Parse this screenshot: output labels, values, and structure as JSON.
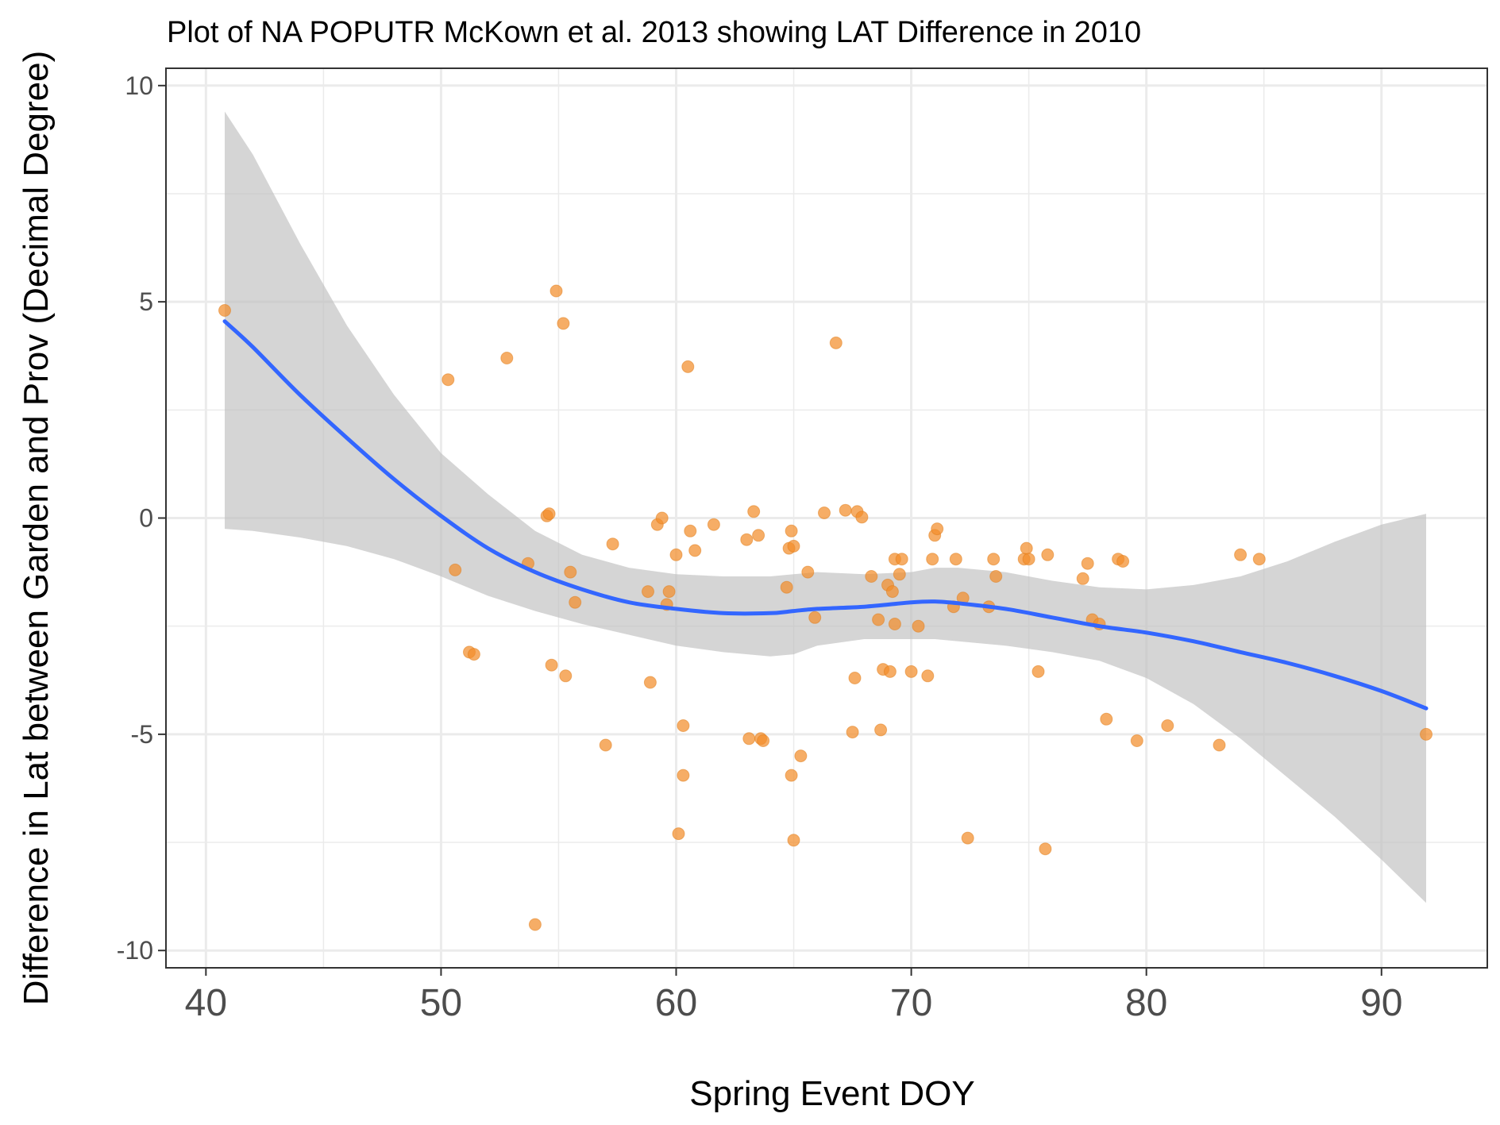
{
  "chart_data": {
    "type": "scatter",
    "title": "Plot of NA POPUTR McKown et al. 2013 showing LAT Difference in 2010",
    "xlabel": "Spring Event DOY",
    "ylabel": "Difference in Lat between Garden and Prov (Decimal Degree)",
    "xlim": [
      38.3,
      94.5
    ],
    "ylim": [
      -10.4,
      10.4
    ],
    "xticks": [
      "40",
      "50",
      "60",
      "70",
      "80",
      "90"
    ],
    "yticks": [
      "10",
      "5",
      "0",
      "-5",
      "-10"
    ],
    "grid": true,
    "legend": "none",
    "colors": {
      "points": "#f28e2b",
      "smooth": "#3366ff",
      "ribbon": "#bfbfbf",
      "grid": "#ebebeb",
      "panel_border": "#333333"
    },
    "points": [
      {
        "x": 40.8,
        "y": 4.8
      },
      {
        "x": 50.3,
        "y": 3.2
      },
      {
        "x": 50.6,
        "y": -1.2
      },
      {
        "x": 51.2,
        "y": -3.1
      },
      {
        "x": 51.4,
        "y": -3.15
      },
      {
        "x": 52.8,
        "y": 3.7
      },
      {
        "x": 53.7,
        "y": -1.05
      },
      {
        "x": 54.0,
        "y": -9.4
      },
      {
        "x": 54.5,
        "y": 0.05
      },
      {
        "x": 54.6,
        "y": 0.1
      },
      {
        "x": 54.7,
        "y": -3.4
      },
      {
        "x": 54.9,
        "y": 5.25
      },
      {
        "x": 55.2,
        "y": 4.5
      },
      {
        "x": 55.3,
        "y": -3.65
      },
      {
        "x": 55.5,
        "y": -1.25
      },
      {
        "x": 55.7,
        "y": -1.95
      },
      {
        "x": 57.0,
        "y": -5.25
      },
      {
        "x": 57.3,
        "y": -0.6
      },
      {
        "x": 58.8,
        "y": -1.7
      },
      {
        "x": 58.9,
        "y": -3.8
      },
      {
        "x": 59.2,
        "y": -0.15
      },
      {
        "x": 59.4,
        "y": 0.0
      },
      {
        "x": 59.6,
        "y": -2.0
      },
      {
        "x": 59.7,
        "y": -1.7
      },
      {
        "x": 60.0,
        "y": -0.85
      },
      {
        "x": 60.1,
        "y": -7.3
      },
      {
        "x": 60.3,
        "y": -4.8
      },
      {
        "x": 60.3,
        "y": -5.95
      },
      {
        "x": 60.5,
        "y": 3.5
      },
      {
        "x": 60.6,
        "y": -0.3
      },
      {
        "x": 60.8,
        "y": -0.75
      },
      {
        "x": 61.6,
        "y": -0.15
      },
      {
        "x": 63.0,
        "y": -0.5
      },
      {
        "x": 63.1,
        "y": -5.1
      },
      {
        "x": 63.3,
        "y": 0.15
      },
      {
        "x": 63.5,
        "y": -0.4
      },
      {
        "x": 63.6,
        "y": -5.1
      },
      {
        "x": 63.7,
        "y": -5.15
      },
      {
        "x": 64.7,
        "y": -1.6
      },
      {
        "x": 64.8,
        "y": -0.7
      },
      {
        "x": 64.9,
        "y": -0.3
      },
      {
        "x": 64.9,
        "y": -5.95
      },
      {
        "x": 65.0,
        "y": -7.45
      },
      {
        "x": 65.0,
        "y": -0.65
      },
      {
        "x": 65.3,
        "y": -5.5
      },
      {
        "x": 65.6,
        "y": -1.25
      },
      {
        "x": 65.9,
        "y": -2.3
      },
      {
        "x": 66.3,
        "y": 0.12
      },
      {
        "x": 66.8,
        "y": 4.05
      },
      {
        "x": 67.2,
        "y": 0.18
      },
      {
        "x": 67.5,
        "y": -4.95
      },
      {
        "x": 67.6,
        "y": -3.7
      },
      {
        "x": 67.7,
        "y": 0.15
      },
      {
        "x": 67.9,
        "y": 0.02
      },
      {
        "x": 68.3,
        "y": -1.35
      },
      {
        "x": 68.6,
        "y": -2.35
      },
      {
        "x": 68.7,
        "y": -4.9
      },
      {
        "x": 68.8,
        "y": -3.5
      },
      {
        "x": 69.0,
        "y": -1.55
      },
      {
        "x": 69.1,
        "y": -3.55
      },
      {
        "x": 69.2,
        "y": -1.7
      },
      {
        "x": 69.3,
        "y": -0.95
      },
      {
        "x": 69.3,
        "y": -2.45
      },
      {
        "x": 69.5,
        "y": -1.3
      },
      {
        "x": 69.6,
        "y": -0.95
      },
      {
        "x": 70.0,
        "y": -3.55
      },
      {
        "x": 70.3,
        "y": -2.5
      },
      {
        "x": 70.7,
        "y": -3.65
      },
      {
        "x": 70.9,
        "y": -0.95
      },
      {
        "x": 71.0,
        "y": -0.4
      },
      {
        "x": 71.1,
        "y": -0.25
      },
      {
        "x": 71.8,
        "y": -2.05
      },
      {
        "x": 71.9,
        "y": -0.95
      },
      {
        "x": 72.2,
        "y": -1.85
      },
      {
        "x": 72.4,
        "y": -7.4
      },
      {
        "x": 73.3,
        "y": -2.05
      },
      {
        "x": 73.5,
        "y": -0.95
      },
      {
        "x": 73.6,
        "y": -1.35
      },
      {
        "x": 74.8,
        "y": -0.95
      },
      {
        "x": 74.9,
        "y": -0.7
      },
      {
        "x": 75.0,
        "y": -0.95
      },
      {
        "x": 75.4,
        "y": -3.55
      },
      {
        "x": 75.7,
        "y": -7.65
      },
      {
        "x": 75.8,
        "y": -0.85
      },
      {
        "x": 77.3,
        "y": -1.4
      },
      {
        "x": 77.5,
        "y": -1.05
      },
      {
        "x": 77.7,
        "y": -2.35
      },
      {
        "x": 78.0,
        "y": -2.45
      },
      {
        "x": 78.3,
        "y": -4.65
      },
      {
        "x": 78.8,
        "y": -0.95
      },
      {
        "x": 79.0,
        "y": -1.0
      },
      {
        "x": 79.6,
        "y": -5.15
      },
      {
        "x": 80.9,
        "y": -4.8
      },
      {
        "x": 83.1,
        "y": -5.25
      },
      {
        "x": 84.0,
        "y": -0.85
      },
      {
        "x": 84.8,
        "y": -0.95
      },
      {
        "x": 91.9,
        "y": -5.0
      }
    ],
    "smooth": {
      "x": [
        40.8,
        42.0,
        44.0,
        46.0,
        48.0,
        50.0,
        52.0,
        54.0,
        56.0,
        58.0,
        60.0,
        62.0,
        64.0,
        65.0,
        66.0,
        68.0,
        70.0,
        71.0,
        72.0,
        74.0,
        76.0,
        78.0,
        80.0,
        82.0,
        84.0,
        86.0,
        88.0,
        90.0,
        91.9
      ],
      "y": [
        4.55,
        3.95,
        2.85,
        1.85,
        0.9,
        0.05,
        -0.7,
        -1.25,
        -1.65,
        -1.95,
        -2.1,
        -2.2,
        -2.2,
        -2.15,
        -2.1,
        -2.05,
        -1.95,
        -1.93,
        -1.97,
        -2.1,
        -2.3,
        -2.5,
        -2.65,
        -2.85,
        -3.1,
        -3.35,
        -3.65,
        -4.0,
        -4.4
      ],
      "lower": [
        -0.25,
        -0.3,
        -0.45,
        -0.65,
        -0.95,
        -1.35,
        -1.8,
        -2.15,
        -2.45,
        -2.7,
        -2.95,
        -3.1,
        -3.2,
        -3.15,
        -2.95,
        -2.8,
        -2.8,
        -2.8,
        -2.85,
        -2.95,
        -3.1,
        -3.3,
        -3.7,
        -4.3,
        -5.1,
        -6.0,
        -6.9,
        -7.9,
        -8.9
      ],
      "upper": [
        9.4,
        8.4,
        6.35,
        4.45,
        2.85,
        1.5,
        0.55,
        -0.3,
        -0.85,
        -1.15,
        -1.3,
        -1.35,
        -1.35,
        -1.3,
        -1.25,
        -1.3,
        -1.25,
        -1.15,
        -1.15,
        -1.25,
        -1.45,
        -1.6,
        -1.65,
        -1.55,
        -1.35,
        -1.0,
        -0.55,
        -0.15,
        0.1
      ]
    }
  }
}
